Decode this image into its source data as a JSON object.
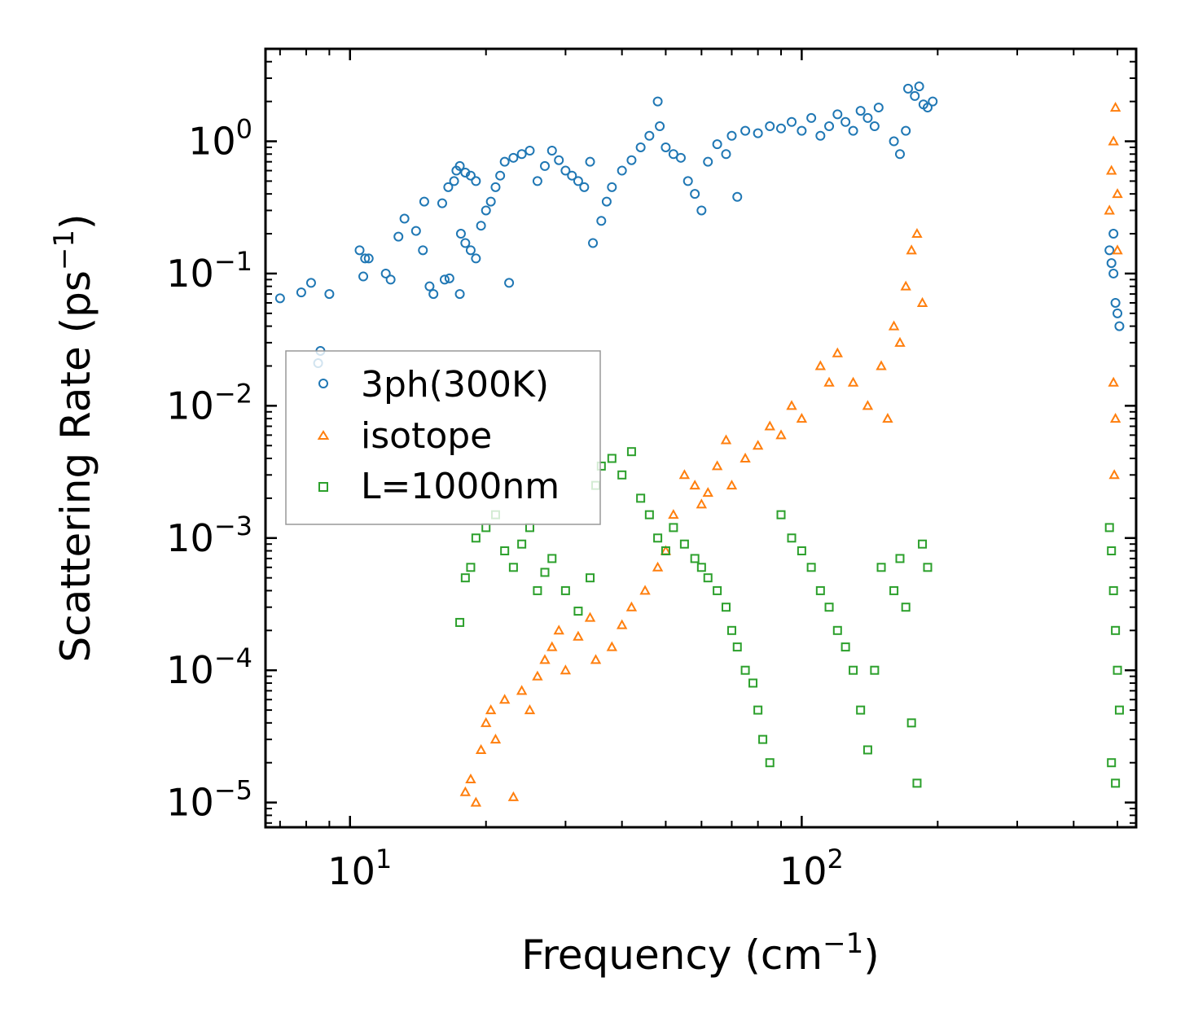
{
  "chart_data": {
    "type": "scatter",
    "title": "",
    "xlabel": {
      "base": "Frequency (cm",
      "exp": "−1",
      "suffix": ")"
    },
    "ylabel": {
      "base": "Scattering Rate (ps",
      "exp": "−1",
      "suffix": ")"
    },
    "xscale": "log",
    "yscale": "log",
    "xlim": [
      6.5,
      550
    ],
    "ylim": [
      6.5e-06,
      5.0
    ],
    "xticks": [
      {
        "value": 10,
        "base": "10",
        "exp": "1"
      },
      {
        "value": 100,
        "base": "10",
        "exp": "2"
      }
    ],
    "yticks": [
      {
        "value": 1,
        "base": "10",
        "exp": "0"
      },
      {
        "value": 0.1,
        "base": "10",
        "exp": "−1"
      },
      {
        "value": 0.01,
        "base": "10",
        "exp": "−2"
      },
      {
        "value": 0.001,
        "base": "10",
        "exp": "−3"
      },
      {
        "value": 0.0001,
        "base": "10",
        "exp": "−4"
      },
      {
        "value": 1e-05,
        "base": "10",
        "exp": "−5"
      }
    ],
    "legend_position": "center-left",
    "series": [
      {
        "name": "3ph(300K)",
        "marker": "circle",
        "color": "#1f77b4",
        "points": [
          [
            7.0,
            0.065
          ],
          [
            7.8,
            0.072
          ],
          [
            8.2,
            0.085
          ],
          [
            9.0,
            0.07
          ],
          [
            8.5,
            0.021
          ],
          [
            8.6,
            0.026
          ],
          [
            10.5,
            0.15
          ],
          [
            10.8,
            0.13
          ],
          [
            11.0,
            0.13
          ],
          [
            10.7,
            0.095
          ],
          [
            12.0,
            0.1
          ],
          [
            12.3,
            0.09
          ],
          [
            12.8,
            0.19
          ],
          [
            13.2,
            0.26
          ],
          [
            14.0,
            0.21
          ],
          [
            14.5,
            0.15
          ],
          [
            14.6,
            0.35
          ],
          [
            15.0,
            0.08
          ],
          [
            15.3,
            0.07
          ],
          [
            16.2,
            0.09
          ],
          [
            16.6,
            0.092
          ],
          [
            17.5,
            0.07
          ],
          [
            16.0,
            0.34
          ],
          [
            16.5,
            0.45
          ],
          [
            17.0,
            0.5
          ],
          [
            17.2,
            0.6
          ],
          [
            17.5,
            0.65
          ],
          [
            18.0,
            0.58
          ],
          [
            18.5,
            0.55
          ],
          [
            19.0,
            0.5
          ],
          [
            17.6,
            0.2
          ],
          [
            18.0,
            0.17
          ],
          [
            18.5,
            0.15
          ],
          [
            19.0,
            0.13
          ],
          [
            19.5,
            0.23
          ],
          [
            20.0,
            0.3
          ],
          [
            20.5,
            0.35
          ],
          [
            21.0,
            0.45
          ],
          [
            21.5,
            0.55
          ],
          [
            22.0,
            0.7
          ],
          [
            23.0,
            0.75
          ],
          [
            24.0,
            0.8
          ],
          [
            25.0,
            0.85
          ],
          [
            22.5,
            0.085
          ],
          [
            26.0,
            0.5
          ],
          [
            27.0,
            0.65
          ],
          [
            28.0,
            0.85
          ],
          [
            29.0,
            0.72
          ],
          [
            30.0,
            0.6
          ],
          [
            31.0,
            0.55
          ],
          [
            32.0,
            0.5
          ],
          [
            33.0,
            0.45
          ],
          [
            34.0,
            0.7
          ],
          [
            34.5,
            0.17
          ],
          [
            36.0,
            0.25
          ],
          [
            37.0,
            0.35
          ],
          [
            38.0,
            0.45
          ],
          [
            40.0,
            0.6
          ],
          [
            42.0,
            0.72
          ],
          [
            44.0,
            0.9
          ],
          [
            46.0,
            1.1
          ],
          [
            48.0,
            2.0
          ],
          [
            48.5,
            1.3
          ],
          [
            50.0,
            0.9
          ],
          [
            52.0,
            0.8
          ],
          [
            54.0,
            0.75
          ],
          [
            56.0,
            0.5
          ],
          [
            58.0,
            0.4
          ],
          [
            60.0,
            0.3
          ],
          [
            62.0,
            0.7
          ],
          [
            65.0,
            0.95
          ],
          [
            68.0,
            0.8
          ],
          [
            70.0,
            1.1
          ],
          [
            72.0,
            0.38
          ],
          [
            75.0,
            1.2
          ],
          [
            80.0,
            1.15
          ],
          [
            85.0,
            1.3
          ],
          [
            90.0,
            1.25
          ],
          [
            95.0,
            1.4
          ],
          [
            100.0,
            1.2
          ],
          [
            105.0,
            1.5
          ],
          [
            110.0,
            1.1
          ],
          [
            115.0,
            1.3
          ],
          [
            120.0,
            1.6
          ],
          [
            125.0,
            1.4
          ],
          [
            130.0,
            1.2
          ],
          [
            135.0,
            1.7
          ],
          [
            140.0,
            1.5
          ],
          [
            145.0,
            1.3
          ],
          [
            148.0,
            1.8
          ],
          [
            160.0,
            1.0
          ],
          [
            165.0,
            0.8
          ],
          [
            170.0,
            1.2
          ],
          [
            172.0,
            2.5
          ],
          [
            178.0,
            2.2
          ],
          [
            182.0,
            2.6
          ],
          [
            186.0,
            1.9
          ],
          [
            190.0,
            1.8
          ],
          [
            195.0,
            2.0
          ],
          [
            480.0,
            0.15
          ],
          [
            485.0,
            0.12
          ],
          [
            490.0,
            0.2
          ],
          [
            495.0,
            0.06
          ],
          [
            500.0,
            0.05
          ],
          [
            505.0,
            0.04
          ],
          [
            490.0,
            0.1
          ]
        ]
      },
      {
        "name": "isotope",
        "marker": "triangle",
        "color": "#ff7f0e",
        "points": [
          [
            18.0,
            1.2e-05
          ],
          [
            18.5,
            1.5e-05
          ],
          [
            19.0,
            1e-05
          ],
          [
            19.5,
            2.5e-05
          ],
          [
            20.0,
            4e-05
          ],
          [
            20.5,
            5e-05
          ],
          [
            21.0,
            3e-05
          ],
          [
            22.0,
            6e-05
          ],
          [
            23.0,
            1.1e-05
          ],
          [
            24.0,
            7e-05
          ],
          [
            25.0,
            5e-05
          ],
          [
            26.0,
            9e-05
          ],
          [
            27.0,
            0.00012
          ],
          [
            28.0,
            0.00015
          ],
          [
            29.0,
            0.0002
          ],
          [
            30.0,
            0.0001
          ],
          [
            32.0,
            0.00018
          ],
          [
            34.0,
            0.00025
          ],
          [
            35.0,
            0.00012
          ],
          [
            38.0,
            0.00015
          ],
          [
            40.0,
            0.00022
          ],
          [
            42.0,
            0.0003
          ],
          [
            45.0,
            0.0004
          ],
          [
            48.0,
            0.0006
          ],
          [
            50.0,
            0.0008
          ],
          [
            52.0,
            0.0015
          ],
          [
            55.0,
            0.003
          ],
          [
            58.0,
            0.0025
          ],
          [
            60.0,
            0.0018
          ],
          [
            62.0,
            0.0022
          ],
          [
            65.0,
            0.0035
          ],
          [
            68.0,
            0.0055
          ],
          [
            70.0,
            0.0025
          ],
          [
            75.0,
            0.004
          ],
          [
            80.0,
            0.005
          ],
          [
            85.0,
            0.007
          ],
          [
            90.0,
            0.006
          ],
          [
            95.0,
            0.01
          ],
          [
            100.0,
            0.008
          ],
          [
            110.0,
            0.02
          ],
          [
            115.0,
            0.015
          ],
          [
            120.0,
            0.025
          ],
          [
            130.0,
            0.015
          ],
          [
            140.0,
            0.01
          ],
          [
            150.0,
            0.02
          ],
          [
            155.0,
            0.008
          ],
          [
            160.0,
            0.04
          ],
          [
            165.0,
            0.03
          ],
          [
            170.0,
            0.08
          ],
          [
            175.0,
            0.15
          ],
          [
            180.0,
            0.2
          ],
          [
            185.0,
            0.06
          ],
          [
            480.0,
            0.3
          ],
          [
            485.0,
            0.6
          ],
          [
            490.0,
            1.0
          ],
          [
            495.0,
            1.8
          ],
          [
            500.0,
            0.4
          ],
          [
            490.0,
            0.015
          ],
          [
            495.0,
            0.008
          ],
          [
            492.0,
            0.003
          ],
          [
            500.0,
            0.15
          ]
        ]
      },
      {
        "name": "L=1000nm",
        "marker": "square",
        "color": "#2ca02c",
        "points": [
          [
            17.5,
            0.00023
          ],
          [
            18.0,
            0.0005
          ],
          [
            18.5,
            0.0006
          ],
          [
            19.0,
            0.001
          ],
          [
            20.0,
            0.0012
          ],
          [
            21.0,
            0.0015
          ],
          [
            22.0,
            0.0008
          ],
          [
            23.0,
            0.0006
          ],
          [
            24.0,
            0.0009
          ],
          [
            25.0,
            0.0012
          ],
          [
            26.0,
            0.0004
          ],
          [
            27.0,
            0.00055
          ],
          [
            28.0,
            0.0007
          ],
          [
            30.0,
            0.0004
          ],
          [
            32.0,
            0.00028
          ],
          [
            34.0,
            0.0005
          ],
          [
            35.0,
            0.0025
          ],
          [
            36.0,
            0.0035
          ],
          [
            38.0,
            0.004
          ],
          [
            40.0,
            0.003
          ],
          [
            42.0,
            0.0045
          ],
          [
            44.0,
            0.002
          ],
          [
            46.0,
            0.0015
          ],
          [
            48.0,
            0.001
          ],
          [
            50.0,
            0.0008
          ],
          [
            52.0,
            0.0012
          ],
          [
            55.0,
            0.0009
          ],
          [
            58.0,
            0.0007
          ],
          [
            60.0,
            0.0006
          ],
          [
            62.0,
            0.0005
          ],
          [
            65.0,
            0.0004
          ],
          [
            68.0,
            0.0003
          ],
          [
            70.0,
            0.0002
          ],
          [
            72.0,
            0.00015
          ],
          [
            75.0,
            0.0001
          ],
          [
            78.0,
            8e-05
          ],
          [
            80.0,
            5e-05
          ],
          [
            82.0,
            3e-05
          ],
          [
            85.0,
            2e-05
          ],
          [
            90.0,
            0.0015
          ],
          [
            95.0,
            0.001
          ],
          [
            100.0,
            0.0008
          ],
          [
            105.0,
            0.0006
          ],
          [
            110.0,
            0.0004
          ],
          [
            115.0,
            0.0003
          ],
          [
            120.0,
            0.0002
          ],
          [
            125.0,
            0.00015
          ],
          [
            130.0,
            0.0001
          ],
          [
            135.0,
            5e-05
          ],
          [
            140.0,
            2.5e-05
          ],
          [
            145.0,
            0.0001
          ],
          [
            150.0,
            0.0006
          ],
          [
            160.0,
            0.0004
          ],
          [
            165.0,
            0.0007
          ],
          [
            170.0,
            0.0003
          ],
          [
            175.0,
            4e-05
          ],
          [
            180.0,
            1.4e-05
          ],
          [
            185.0,
            0.0009
          ],
          [
            190.0,
            0.0006
          ],
          [
            480.0,
            0.0012
          ],
          [
            485.0,
            0.0008
          ],
          [
            490.0,
            0.0004
          ],
          [
            495.0,
            0.0002
          ],
          [
            500.0,
            0.0001
          ],
          [
            505.0,
            5e-05
          ],
          [
            495.0,
            1.4e-05
          ],
          [
            485.0,
            2e-05
          ]
        ]
      }
    ]
  }
}
